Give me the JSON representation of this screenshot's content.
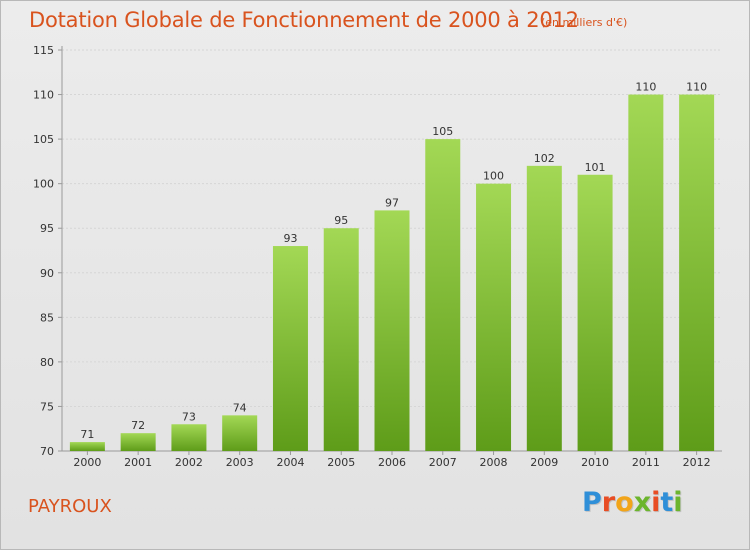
{
  "title": "Dotation Globale de Fonctionnement de 2000 à 2012",
  "subtitle": "(en milliers d'€)",
  "place": "PAYROUX",
  "logo": {
    "letters": [
      "P",
      "r",
      "o",
      "x",
      "i",
      "t",
      "i"
    ],
    "colors": [
      "#2f8fd8",
      "#e84d24",
      "#f2a51a",
      "#6cb52d",
      "#e84d24",
      "#2f8fd8",
      "#6cb52d"
    ]
  },
  "colors": {
    "bar_light": "#9fd44f",
    "bar_dark": "#5f9d1a",
    "accent": "#d9531e",
    "grid": "#d6d6d6",
    "axis": "#9a9a9a"
  },
  "chart_data": {
    "type": "bar",
    "title": "Dotation Globale de Fonctionnement de 2000 à 2012",
    "subtitle": "(en milliers d'€)",
    "categories": [
      "2000",
      "2001",
      "2002",
      "2003",
      "2004",
      "2005",
      "2006",
      "2007",
      "2008",
      "2009",
      "2010",
      "2011",
      "2012"
    ],
    "values": [
      71,
      72,
      73,
      74,
      93,
      95,
      97,
      105,
      100,
      102,
      101,
      110,
      110
    ],
    "ylim": [
      70,
      115
    ],
    "yticks": [
      70,
      75,
      80,
      85,
      90,
      95,
      100,
      105,
      110,
      115
    ],
    "grid": "horizontal dashed",
    "xlabel": "",
    "ylabel": ""
  }
}
